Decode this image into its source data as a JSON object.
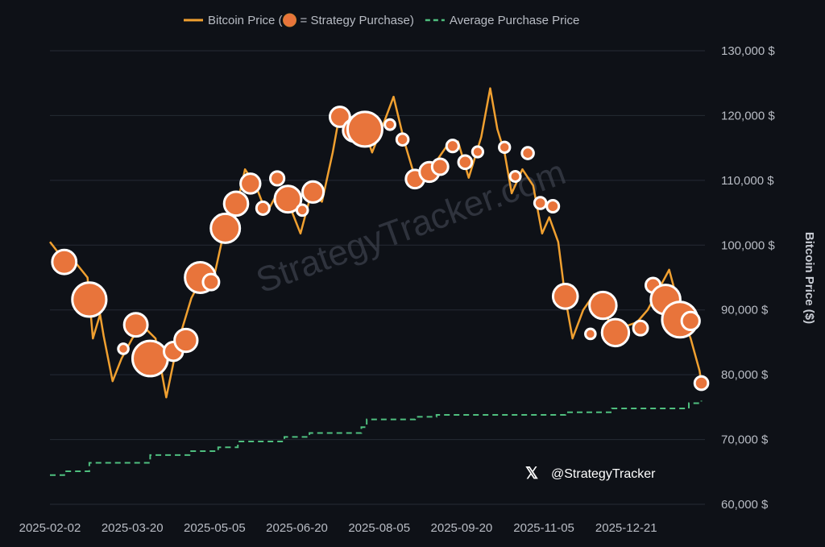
{
  "chart_data": {
    "type": "line",
    "legend_position": "top",
    "grid": true,
    "y_axis_label": "Bitcoin Price ($)",
    "watermark": "StrategyTracker.com",
    "handle": "@StrategyTracker",
    "xlim": [
      "2025-02-02",
      "2026-02-03"
    ],
    "xticks": [
      "2025-02-02",
      "2025-03-20",
      "2025-05-05",
      "2025-06-20",
      "2025-08-05",
      "2025-09-20",
      "2025-11-05",
      "2025-12-21"
    ],
    "ylim": [
      60000,
      130000
    ],
    "yticks": [
      {
        "value": 60000,
        "label": "60,000 $"
      },
      {
        "value": 70000,
        "label": "70,000 $"
      },
      {
        "value": 80000,
        "label": "80,000 $"
      },
      {
        "value": 90000,
        "label": "90,000 $"
      },
      {
        "value": 100000,
        "label": "100,000 $"
      },
      {
        "value": 110000,
        "label": "110,000 $"
      },
      {
        "value": 120000,
        "label": "120,000 $"
      },
      {
        "value": 130000,
        "label": "130,000 $"
      }
    ],
    "series": [
      {
        "name": "Bitcoin Price (",
        "color": "#f0a030",
        "x": [
          "2025-02-02",
          "2025-02-09",
          "2025-02-16",
          "2025-02-23",
          "2025-02-26",
          "2025-03-02",
          "2025-03-04",
          "2025-03-09",
          "2025-03-14",
          "2025-03-20",
          "2025-03-26",
          "2025-04-02",
          "2025-04-08",
          "2025-04-14",
          "2025-04-22",
          "2025-04-28",
          "2025-05-05",
          "2025-05-10",
          "2025-05-16",
          "2025-05-22",
          "2025-05-28",
          "2025-06-03",
          "2025-06-09",
          "2025-06-15",
          "2025-06-22",
          "2025-06-28",
          "2025-07-04",
          "2025-07-10",
          "2025-07-14",
          "2025-07-20",
          "2025-07-26",
          "2025-08-01",
          "2025-08-08",
          "2025-08-13",
          "2025-08-19",
          "2025-08-25",
          "2025-08-31",
          "2025-09-06",
          "2025-09-12",
          "2025-09-18",
          "2025-09-24",
          "2025-10-01",
          "2025-10-06",
          "2025-10-10",
          "2025-10-14",
          "2025-10-18",
          "2025-10-24",
          "2025-10-30",
          "2025-11-04",
          "2025-11-08",
          "2025-11-13",
          "2025-11-17",
          "2025-11-21",
          "2025-11-27",
          "2025-12-03",
          "2025-12-09",
          "2025-12-15",
          "2025-12-21",
          "2025-12-27",
          "2026-01-02",
          "2026-01-08",
          "2026-01-14",
          "2026-01-20",
          "2026-01-26",
          "2026-01-31",
          "2026-02-01"
        ],
        "values": [
          100500,
          98000,
          97400,
          95000,
          85600,
          89300,
          86000,
          79000,
          82500,
          85600,
          87500,
          85600,
          76500,
          84500,
          91800,
          95000,
          95500,
          101800,
          104300,
          111700,
          109200,
          104900,
          108000,
          106700,
          101800,
          108000,
          106700,
          114300,
          120400,
          119800,
          119200,
          114300,
          119200,
          122900,
          116000,
          110400,
          111000,
          113000,
          115400,
          116000,
          110400,
          116700,
          124200,
          117900,
          114300,
          108000,
          111700,
          109200,
          101800,
          104300,
          100500,
          91800,
          85600,
          90000,
          92400,
          89300,
          86800,
          87500,
          88100,
          90000,
          93100,
          96200,
          90000,
          85600,
          80600,
          78700
        ]
      },
      {
        "name": "Average Purchase Price",
        "color": "#4fbf7f",
        "x": [
          "2025-02-02",
          "2025-02-10",
          "2025-02-24",
          "2025-03-30",
          "2025-04-21",
          "2025-05-07",
          "2025-05-18",
          "2025-06-13",
          "2025-06-27",
          "2025-07-26",
          "2025-07-29",
          "2025-08-25",
          "2025-09-06",
          "2025-11-17",
          "2025-12-13",
          "2026-01-25",
          "2026-02-01"
        ],
        "values": [
          64500,
          65100,
          66400,
          67600,
          68200,
          68800,
          69700,
          70400,
          71000,
          71900,
          73100,
          73500,
          73800,
          74200,
          74800,
          75600,
          76000
        ]
      }
    ],
    "purchases": {
      "name": "= Strategy Purchase)",
      "color": "#e8743b",
      "x": [
        "2025-02-10",
        "2025-02-24",
        "2025-03-15",
        "2025-03-22",
        "2025-03-30",
        "2025-04-12",
        "2025-04-19",
        "2025-04-27",
        "2025-05-03",
        "2025-05-11",
        "2025-05-17",
        "2025-05-25",
        "2025-06-01",
        "2025-06-09",
        "2025-06-15",
        "2025-06-23",
        "2025-06-29",
        "2025-07-14",
        "2025-07-22",
        "2025-07-28",
        "2025-08-11",
        "2025-08-18",
        "2025-08-25",
        "2025-09-02",
        "2025-09-08",
        "2025-09-15",
        "2025-09-22",
        "2025-09-29",
        "2025-10-14",
        "2025-10-20",
        "2025-10-27",
        "2025-11-03",
        "2025-11-10",
        "2025-11-17",
        "2025-12-01",
        "2025-12-08",
        "2025-12-15",
        "2025-12-29",
        "2026-01-05",
        "2026-01-12",
        "2026-01-20",
        "2026-01-26",
        "2026-02-01"
      ],
      "values": [
        97400,
        91600,
        84000,
        87700,
        82500,
        83600,
        85300,
        95000,
        94300,
        102600,
        106400,
        109500,
        105700,
        110300,
        107100,
        105400,
        108200,
        119800,
        117700,
        117900,
        118600,
        116300,
        110200,
        111300,
        112100,
        115300,
        112800,
        114400,
        115100,
        110600,
        114200,
        106500,
        106000,
        92100,
        86300,
        90700,
        86500,
        87200,
        93800,
        91600,
        88500,
        88300,
        78700
      ],
      "sizes": [
        7600,
        20000,
        130,
        6900,
        22000,
        3500,
        6500,
        15000,
        1900,
        13000,
        7400,
        4000,
        700,
        1000,
        10000,
        250,
        5000,
        4200,
        6000,
        21000,
        150,
        400,
        3100,
        4000,
        1900,
        500,
        850,
        200,
        220,
        170,
        400,
        400,
        490,
        8200,
        130,
        10600,
        10600,
        1200,
        1300,
        13600,
        22300,
        2900,
        850
      ]
    }
  }
}
